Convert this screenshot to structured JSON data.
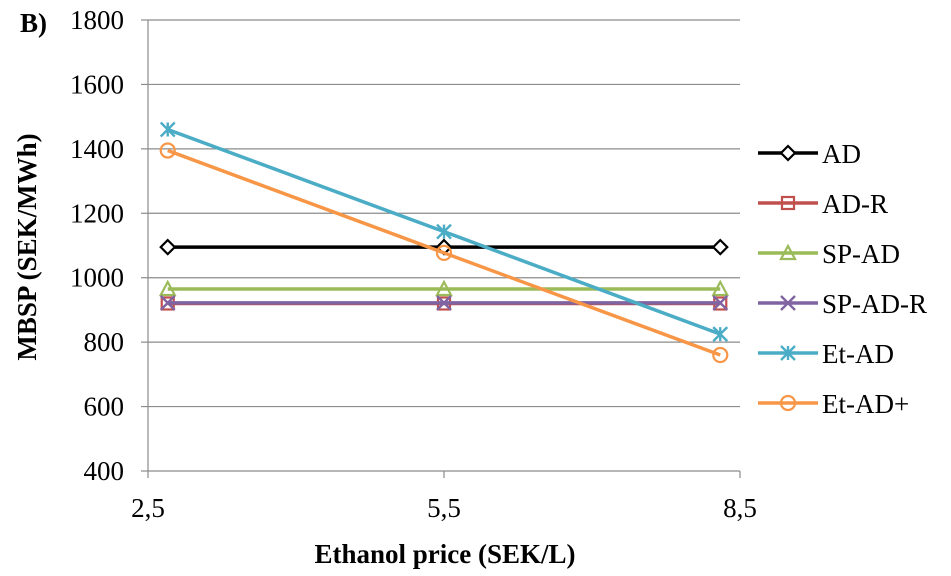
{
  "panel_label": "B)",
  "chart_data": {
    "type": "line",
    "xlabel": "Ethanol price (SEK/L)",
    "ylabel": "MBSP (SEK/MWh)",
    "xlim": [
      2.5,
      8.5
    ],
    "ylim": [
      400,
      1800
    ],
    "x_ticks": [
      "2,5",
      "5,5",
      "8,5"
    ],
    "y_ticks": [
      "400",
      "600",
      "800",
      "1000",
      "1200",
      "1400",
      "1600",
      "1800"
    ],
    "x": [
      2.7,
      5.5,
      8.3
    ],
    "grid": "horizontal",
    "legend_position": "right",
    "series": [
      {
        "name": "AD",
        "values": [
          1095,
          1095,
          1095
        ],
        "color": "#000000",
        "marker": "diamond"
      },
      {
        "name": "AD-R",
        "values": [
          920,
          920,
          920
        ],
        "color": "#c0504d",
        "marker": "square"
      },
      {
        "name": "SP-AD",
        "values": [
          965,
          965,
          965
        ],
        "color": "#9bbb59",
        "marker": "triangle"
      },
      {
        "name": "SP-AD-R",
        "values": [
          922,
          922,
          922
        ],
        "color": "#8064a2",
        "marker": "x"
      },
      {
        "name": "Et-AD",
        "values": [
          1460,
          1143,
          825
        ],
        "color": "#4bacc6",
        "marker": "star"
      },
      {
        "name": "Et-AD+",
        "values": [
          1395,
          1077,
          760
        ],
        "color": "#f79646",
        "marker": "circle"
      }
    ]
  }
}
